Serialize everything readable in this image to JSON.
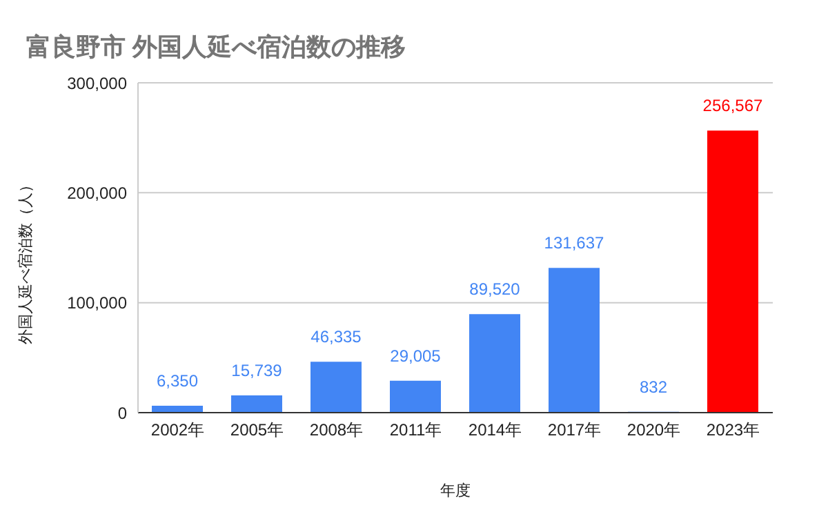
{
  "chart_data": {
    "type": "bar",
    "title": "富良野市 外国人延べ宿泊数の推移",
    "xlabel": "年度",
    "ylabel": "外国人延べ宿泊数（人）",
    "categories": [
      "2002年",
      "2005年",
      "2008年",
      "2011年",
      "2014年",
      "2017年",
      "2020年",
      "2023年"
    ],
    "values": [
      6350,
      15739,
      46335,
      29005,
      89520,
      131637,
      832,
      256567
    ],
    "colors": [
      "#4285f4",
      "#4285f4",
      "#4285f4",
      "#4285f4",
      "#4285f4",
      "#4285f4",
      "#4285f4",
      "#ff0000"
    ],
    "value_labels": [
      "6,350",
      "15,739",
      "46,335",
      "29,005",
      "89,520",
      "131,637",
      "832",
      "256,567"
    ],
    "ylim": [
      0,
      300000
    ],
    "yticks": [
      {
        "value": 0,
        "label": "0"
      },
      {
        "value": 100000,
        "label": "100,000"
      },
      {
        "value": 200000,
        "label": "200,000"
      },
      {
        "value": 300000,
        "label": "300,000"
      }
    ],
    "grid": "y"
  }
}
